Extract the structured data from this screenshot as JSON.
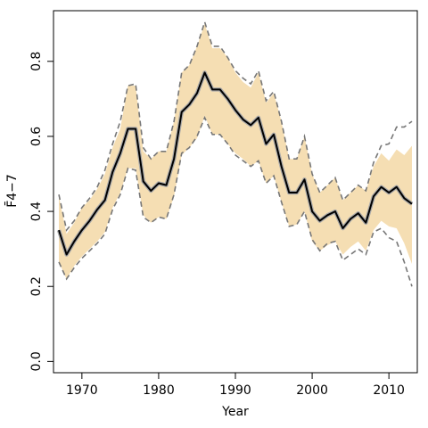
{
  "chart_data": {
    "type": "line",
    "xlabel": "Year",
    "ylabel": "F̄4−7",
    "xlim": [
      1966.3,
      2013.7
    ],
    "ylim": [
      -0.03,
      0.935
    ],
    "x_ticks": [
      1970,
      1980,
      1990,
      2000,
      2010
    ],
    "y_ticks": [
      0.0,
      0.2,
      0.4,
      0.6,
      0.8
    ],
    "x_tick_labels": [
      "1970",
      "1980",
      "1990",
      "2000",
      "2010"
    ],
    "y_tick_labels": [
      "0.0",
      "0.2",
      "0.4",
      "0.6",
      "0.8"
    ],
    "grid": false,
    "colors": {
      "band": "#f5deb3",
      "estimate": "#000000",
      "estimate_outline": "#a9a9a9",
      "ci_line": "#777777"
    },
    "x": [
      1967,
      1968,
      1969,
      1970,
      1971,
      1972,
      1973,
      1974,
      1975,
      1976,
      1977,
      1978,
      1979,
      1980,
      1981,
      1982,
      1983,
      1984,
      1985,
      1986,
      1987,
      1988,
      1989,
      1990,
      1991,
      1992,
      1993,
      1994,
      1995,
      1996,
      1997,
      1998,
      1999,
      2000,
      2001,
      2002,
      2003,
      2004,
      2005,
      2006,
      2007,
      2008,
      2009,
      2010,
      2011,
      2012,
      2013
    ],
    "series": [
      {
        "role": "estimate",
        "values": [
          0.35,
          0.285,
          0.32,
          0.35,
          0.375,
          0.405,
          0.43,
          0.505,
          0.555,
          0.62,
          0.62,
          0.48,
          0.455,
          0.475,
          0.47,
          0.54,
          0.665,
          0.685,
          0.715,
          0.77,
          0.725,
          0.725,
          0.7,
          0.67,
          0.645,
          0.63,
          0.65,
          0.58,
          0.605,
          0.52,
          0.45,
          0.45,
          0.485,
          0.4,
          0.375,
          0.39,
          0.4,
          0.355,
          0.38,
          0.395,
          0.37,
          0.44,
          0.465,
          0.45,
          0.465,
          0.435,
          0.42
        ]
      },
      {
        "role": "band-upper",
        "values": [
          0.44,
          0.34,
          0.37,
          0.41,
          0.43,
          0.46,
          0.5,
          0.57,
          0.62,
          0.735,
          0.735,
          0.56,
          0.54,
          0.56,
          0.56,
          0.64,
          0.77,
          0.79,
          0.84,
          0.9,
          0.835,
          0.835,
          0.81,
          0.77,
          0.745,
          0.73,
          0.77,
          0.69,
          0.715,
          0.64,
          0.54,
          0.54,
          0.6,
          0.5,
          0.45,
          0.47,
          0.49,
          0.43,
          0.45,
          0.47,
          0.455,
          0.52,
          0.555,
          0.535,
          0.565,
          0.55,
          0.575
        ]
      },
      {
        "role": "band-lower",
        "values": [
          0.265,
          0.22,
          0.255,
          0.28,
          0.3,
          0.32,
          0.345,
          0.41,
          0.45,
          0.515,
          0.515,
          0.39,
          0.37,
          0.385,
          0.38,
          0.44,
          0.55,
          0.57,
          0.595,
          0.655,
          0.605,
          0.605,
          0.58,
          0.555,
          0.54,
          0.52,
          0.535,
          0.475,
          0.495,
          0.425,
          0.36,
          0.365,
          0.4,
          0.32,
          0.295,
          0.31,
          0.32,
          0.285,
          0.305,
          0.32,
          0.295,
          0.35,
          0.375,
          0.36,
          0.355,
          0.315,
          0.26
        ]
      },
      {
        "role": "ci-upper",
        "values": [
          0.445,
          0.35,
          0.375,
          0.41,
          0.435,
          0.465,
          0.51,
          0.58,
          0.64,
          0.735,
          0.74,
          0.57,
          0.54,
          0.56,
          0.56,
          0.64,
          0.77,
          0.79,
          0.84,
          0.905,
          0.84,
          0.84,
          0.81,
          0.775,
          0.755,
          0.74,
          0.775,
          0.695,
          0.72,
          0.64,
          0.54,
          0.54,
          0.6,
          0.5,
          0.45,
          0.47,
          0.49,
          0.43,
          0.45,
          0.47,
          0.455,
          0.53,
          0.575,
          0.58,
          0.625,
          0.625,
          0.64
        ]
      },
      {
        "role": "ci-lower",
        "values": [
          0.265,
          0.22,
          0.25,
          0.275,
          0.295,
          0.315,
          0.34,
          0.405,
          0.445,
          0.515,
          0.51,
          0.385,
          0.37,
          0.385,
          0.38,
          0.445,
          0.555,
          0.57,
          0.6,
          0.65,
          0.605,
          0.605,
          0.58,
          0.55,
          0.535,
          0.52,
          0.535,
          0.475,
          0.495,
          0.425,
          0.36,
          0.365,
          0.4,
          0.325,
          0.295,
          0.315,
          0.32,
          0.27,
          0.285,
          0.3,
          0.285,
          0.345,
          0.355,
          0.33,
          0.32,
          0.265,
          0.2
        ]
      }
    ]
  }
}
